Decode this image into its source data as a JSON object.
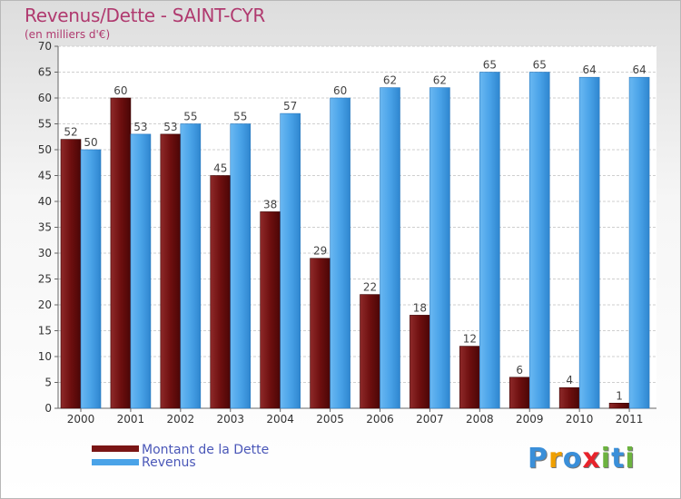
{
  "chart_data": {
    "type": "bar",
    "title": "Revenus/Dette - SAINT-CYR",
    "subtitle": "(en milliers d'€)",
    "categories": [
      "2000",
      "2001",
      "2002",
      "2003",
      "2004",
      "2005",
      "2006",
      "2007",
      "2008",
      "2009",
      "2010",
      "2011"
    ],
    "series": [
      {
        "name": "Montant de la Dette",
        "values": [
          52,
          60,
          53,
          45,
          38,
          29,
          22,
          18,
          12,
          6,
          4,
          1
        ],
        "color": "#7a1515"
      },
      {
        "name": "Revenus",
        "values": [
          50,
          53,
          55,
          55,
          57,
          60,
          62,
          62,
          65,
          65,
          64,
          64
        ],
        "color": "#4aa3e8"
      }
    ],
    "ylim": [
      0,
      70
    ],
    "yticks": [
      0,
      5,
      10,
      15,
      20,
      25,
      30,
      35,
      40,
      45,
      50,
      55,
      60,
      65,
      70
    ],
    "grid": true,
    "legend": "bottom-left"
  },
  "logo": {
    "text": "Proxiti",
    "letter_colors": [
      "#3a8fd9",
      "#f0a000",
      "#3a8fd9",
      "#e8232b",
      "#6cb33f",
      "#3a8fd9",
      "#6cb33f"
    ]
  }
}
